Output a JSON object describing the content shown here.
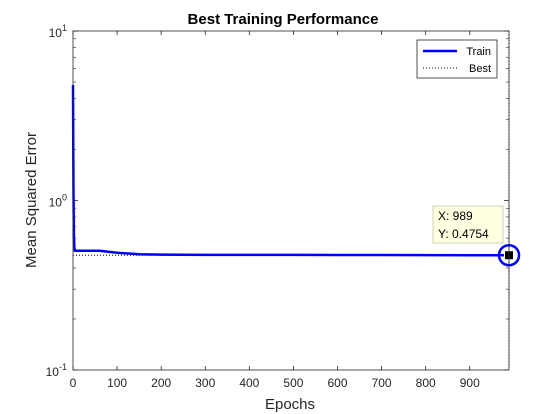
{
  "chart_data": {
    "type": "line",
    "title": "Best Training Performance",
    "xlabel": "Epochs",
    "ylabel": "Mean Squared Error",
    "xlim": [
      0,
      989
    ],
    "ylim": [
      0.1,
      10
    ],
    "yscale": "log",
    "x_ticks": [
      "0",
      "100",
      "200",
      "300",
      "400",
      "500",
      "600",
      "700",
      "800",
      "900"
    ],
    "y_ticks": [
      {
        "base": "10",
        "exp": "1"
      },
      {
        "base": "10",
        "exp": "0"
      },
      {
        "base": "10",
        "exp": "-1"
      }
    ],
    "series": [
      {
        "name": "Train",
        "color": "#0000ff",
        "style": "solid",
        "x": [
          0,
          1,
          2,
          3,
          4,
          5,
          10,
          30,
          60,
          100,
          150,
          200,
          300,
          400,
          500,
          600,
          700,
          800,
          900,
          989
        ],
        "y": [
          4.8,
          1.2,
          0.62,
          0.53,
          0.51,
          0.505,
          0.505,
          0.505,
          0.505,
          0.492,
          0.482,
          0.479,
          0.478,
          0.478,
          0.478,
          0.477,
          0.477,
          0.476,
          0.4757,
          0.4754
        ]
      },
      {
        "name": "Best",
        "color": "#000000",
        "style": "dotted",
        "horizontal_y": 0.4754,
        "vertical_x": 989
      }
    ],
    "legend": {
      "position": "top-right",
      "entries": [
        "Train",
        "Best"
      ]
    },
    "best_marker": {
      "x": 989,
      "y": 0.4754
    },
    "datatip": {
      "x_label": "X: 989",
      "y_label": "Y: 0.4754"
    },
    "grid": false
  }
}
